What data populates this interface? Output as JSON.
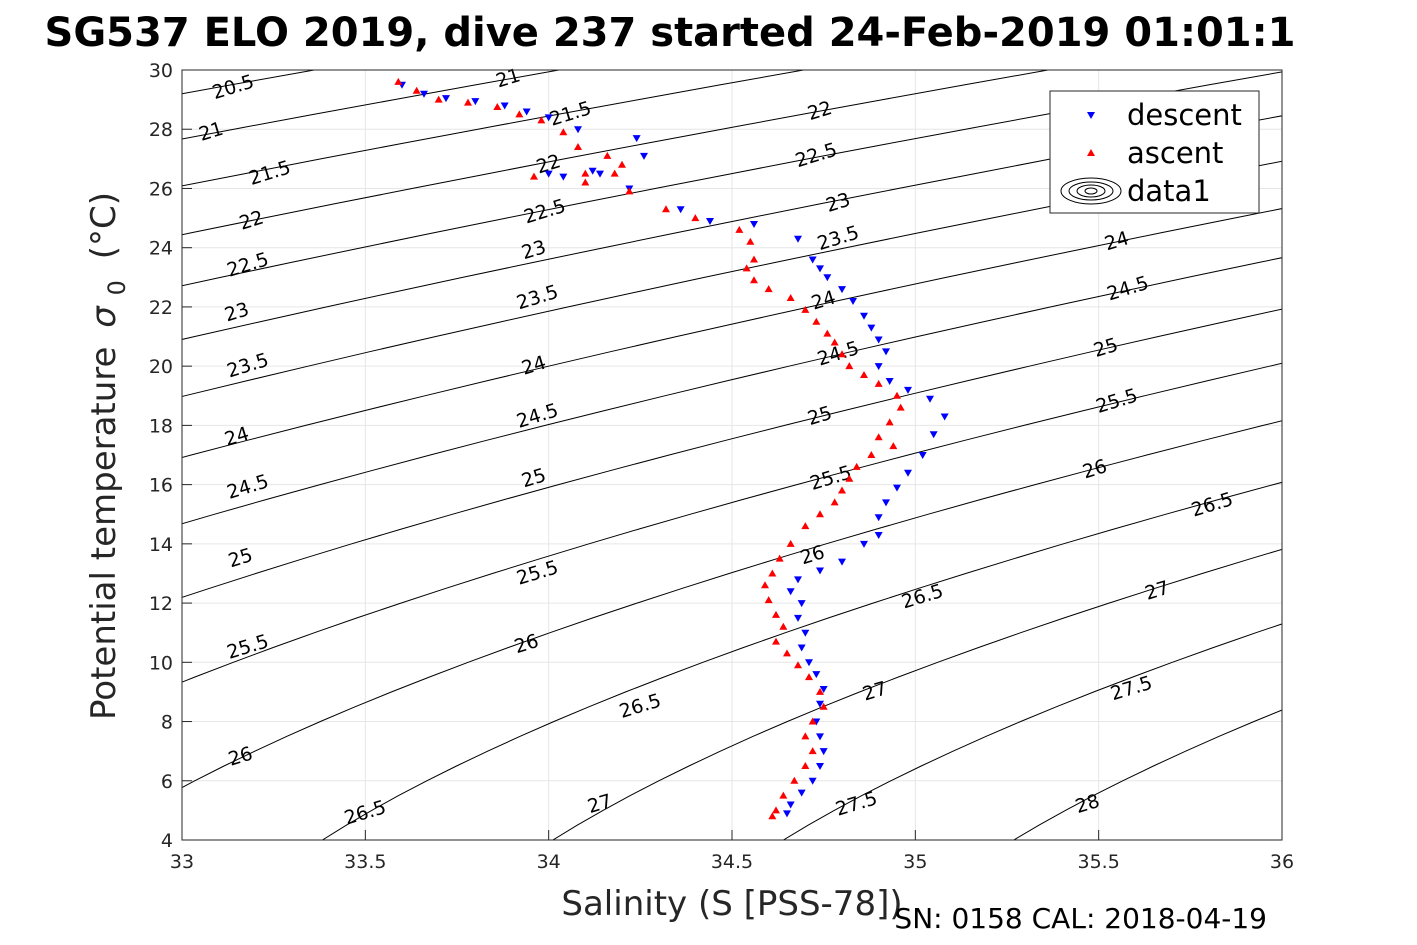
{
  "chart_data": {
    "type": "scatter",
    "title": "SG537 ELO 2019, dive 237 started 24-Feb-2019 01:01:1",
    "xlabel": "Salinity (S [PSS-78])",
    "ylabel": "Potential temperature",
    "ylabel_symbol": "σ",
    "ylabel_subscript": "0",
    "ylabel_unit": "(°C)",
    "xlim": [
      33,
      36
    ],
    "ylim": [
      4,
      30
    ],
    "x_ticks": [
      "33",
      "33.5",
      "34",
      "34.5",
      "35",
      "35.5",
      "36"
    ],
    "x_tick_values": [
      33,
      33.5,
      34,
      34.5,
      35,
      35.5,
      36
    ],
    "y_ticks": [
      "4",
      "6",
      "8",
      "10",
      "12",
      "14",
      "16",
      "18",
      "20",
      "22",
      "24",
      "26",
      "28",
      "30"
    ],
    "y_tick_values": [
      4,
      6,
      8,
      10,
      12,
      14,
      16,
      18,
      20,
      22,
      24,
      26,
      28,
      30
    ],
    "grid": true,
    "legend_position": "top-right",
    "legend": [
      {
        "label": "descent",
        "marker": "triangle-down",
        "color": "#0000ff"
      },
      {
        "label": "ascent",
        "marker": "triangle-up",
        "color": "#ff0000"
      },
      {
        "label": "data1",
        "marker": "contour",
        "color": "#000000"
      }
    ],
    "contours": {
      "levels": [
        20.5,
        21,
        21.5,
        22,
        22.5,
        23,
        23.5,
        24,
        24.5,
        25,
        25.5,
        26,
        26.5,
        27,
        27.5,
        28
      ],
      "labels": [
        {
          "text": "20.5",
          "s": 33.14,
          "t": 29.4
        },
        {
          "text": "21",
          "s": 33.08,
          "t": 27.9
        },
        {
          "text": "21",
          "s": 33.89,
          "t": 29.7
        },
        {
          "text": "21.5",
          "s": 33.24,
          "t": 26.5
        },
        {
          "text": "21.5",
          "s": 34.06,
          "t": 28.5
        },
        {
          "text": "22",
          "s": 33.19,
          "t": 24.9
        },
        {
          "text": "22",
          "s": 34.0,
          "t": 26.8
        },
        {
          "text": "22",
          "s": 34.74,
          "t": 28.6
        },
        {
          "text": "22.5",
          "s": 33.18,
          "t": 23.4
        },
        {
          "text": "22.5",
          "s": 33.99,
          "t": 25.2
        },
        {
          "text": "22.5",
          "s": 34.73,
          "t": 27.1
        },
        {
          "text": "23",
          "s": 33.15,
          "t": 21.8
        },
        {
          "text": "23",
          "s": 33.96,
          "t": 23.9
        },
        {
          "text": "23",
          "s": 34.79,
          "t": 25.5
        },
        {
          "text": "23.5",
          "s": 33.18,
          "t": 20.0
        },
        {
          "text": "23.5",
          "s": 33.97,
          "t": 22.3
        },
        {
          "text": "23.5",
          "s": 34.79,
          "t": 24.3
        },
        {
          "text": "24",
          "s": 33.15,
          "t": 17.6
        },
        {
          "text": "24",
          "s": 33.96,
          "t": 20.0
        },
        {
          "text": "24",
          "s": 34.75,
          "t": 22.2
        },
        {
          "text": "24",
          "s": 35.55,
          "t": 24.2
        },
        {
          "text": "24.5",
          "s": 33.18,
          "t": 15.9
        },
        {
          "text": "24.5",
          "s": 33.97,
          "t": 18.3
        },
        {
          "text": "24.5",
          "s": 34.79,
          "t": 20.4
        },
        {
          "text": "24.5",
          "s": 35.58,
          "t": 22.6
        },
        {
          "text": "25",
          "s": 33.16,
          "t": 13.5
        },
        {
          "text": "25",
          "s": 33.96,
          "t": 16.2
        },
        {
          "text": "25",
          "s": 34.74,
          "t": 18.3
        },
        {
          "text": "25",
          "s": 35.52,
          "t": 20.6
        },
        {
          "text": "25.5",
          "s": 33.18,
          "t": 10.5
        },
        {
          "text": "25.5",
          "s": 33.97,
          "t": 13.0
        },
        {
          "text": "25.5",
          "s": 34.77,
          "t": 16.2
        },
        {
          "text": "25.5",
          "s": 35.55,
          "t": 18.8
        },
        {
          "text": "26",
          "s": 33.16,
          "t": 6.8
        },
        {
          "text": "26",
          "s": 33.94,
          "t": 10.6
        },
        {
          "text": "26",
          "s": 34.72,
          "t": 13.6
        },
        {
          "text": "26",
          "s": 35.49,
          "t": 16.5
        },
        {
          "text": "26.5",
          "s": 33.5,
          "t": 4.9
        },
        {
          "text": "26.5",
          "s": 34.25,
          "t": 8.5
        },
        {
          "text": "26.5",
          "s": 35.02,
          "t": 12.2
        },
        {
          "text": "26.5",
          "s": 35.81,
          "t": 15.3
        },
        {
          "text": "27",
          "s": 34.14,
          "t": 5.2
        },
        {
          "text": "27",
          "s": 34.89,
          "t": 9.0
        },
        {
          "text": "27",
          "s": 35.66,
          "t": 12.4
        },
        {
          "text": "27.5",
          "s": 34.84,
          "t": 5.2
        },
        {
          "text": "27.5",
          "s": 35.59,
          "t": 9.1
        },
        {
          "text": "28",
          "s": 35.47,
          "t": 5.2
        }
      ]
    },
    "series": [
      {
        "name": "descent",
        "color": "#0000ff",
        "marker": "triangle-down",
        "points": [
          [
            33.6,
            29.5
          ],
          [
            33.66,
            29.2
          ],
          [
            33.72,
            29.05
          ],
          [
            33.8,
            28.95
          ],
          [
            33.88,
            28.8
          ],
          [
            33.94,
            28.6
          ],
          [
            34.0,
            28.4
          ],
          [
            34.08,
            28.0
          ],
          [
            34.24,
            27.7
          ],
          [
            34.26,
            27.1
          ],
          [
            34.12,
            26.6
          ],
          [
            34.0,
            26.5
          ],
          [
            34.04,
            26.4
          ],
          [
            34.14,
            26.5
          ],
          [
            34.22,
            26.0
          ],
          [
            34.36,
            25.3
          ],
          [
            34.44,
            24.9
          ],
          [
            34.56,
            24.8
          ],
          [
            34.68,
            24.3
          ],
          [
            34.72,
            23.6
          ],
          [
            34.74,
            23.3
          ],
          [
            34.76,
            23.0
          ],
          [
            34.8,
            22.6
          ],
          [
            34.83,
            22.2
          ],
          [
            34.86,
            21.7
          ],
          [
            34.88,
            21.3
          ],
          [
            34.9,
            20.9
          ],
          [
            34.92,
            20.5
          ],
          [
            34.9,
            20.0
          ],
          [
            34.93,
            19.5
          ],
          [
            34.98,
            19.2
          ],
          [
            35.04,
            18.9
          ],
          [
            35.08,
            18.3
          ],
          [
            35.05,
            17.7
          ],
          [
            35.02,
            17.0
          ],
          [
            34.98,
            16.4
          ],
          [
            34.95,
            15.9
          ],
          [
            34.92,
            15.4
          ],
          [
            34.9,
            14.9
          ],
          [
            34.9,
            14.3
          ],
          [
            34.86,
            14.0
          ],
          [
            34.8,
            13.4
          ],
          [
            34.74,
            13.1
          ],
          [
            34.68,
            12.8
          ],
          [
            34.66,
            12.4
          ],
          [
            34.69,
            12.0
          ],
          [
            34.68,
            11.5
          ],
          [
            34.7,
            11.0
          ],
          [
            34.69,
            10.5
          ],
          [
            34.71,
            10.0
          ],
          [
            34.73,
            9.6
          ],
          [
            34.75,
            9.1
          ],
          [
            34.74,
            8.6
          ],
          [
            34.73,
            8.0
          ],
          [
            34.74,
            7.5
          ],
          [
            34.75,
            7.0
          ],
          [
            34.74,
            6.5
          ],
          [
            34.72,
            6.0
          ],
          [
            34.69,
            5.6
          ],
          [
            34.66,
            5.2
          ],
          [
            34.65,
            4.9
          ]
        ]
      },
      {
        "name": "ascent",
        "color": "#ff0000",
        "marker": "triangle-up",
        "points": [
          [
            33.59,
            29.6
          ],
          [
            33.64,
            29.3
          ],
          [
            33.7,
            29.0
          ],
          [
            33.78,
            28.9
          ],
          [
            33.86,
            28.75
          ],
          [
            33.92,
            28.5
          ],
          [
            33.98,
            28.3
          ],
          [
            34.04,
            27.9
          ],
          [
            34.08,
            27.4
          ],
          [
            34.16,
            27.1
          ],
          [
            34.2,
            26.8
          ],
          [
            34.18,
            26.5
          ],
          [
            34.1,
            26.5
          ],
          [
            33.96,
            26.4
          ],
          [
            34.1,
            26.2
          ],
          [
            34.22,
            25.9
          ],
          [
            34.32,
            25.3
          ],
          [
            34.4,
            25.0
          ],
          [
            34.52,
            24.6
          ],
          [
            34.55,
            24.2
          ],
          [
            34.56,
            23.6
          ],
          [
            34.54,
            23.3
          ],
          [
            34.56,
            22.9
          ],
          [
            34.6,
            22.6
          ],
          [
            34.66,
            22.3
          ],
          [
            34.7,
            21.9
          ],
          [
            34.73,
            21.5
          ],
          [
            34.76,
            21.1
          ],
          [
            34.78,
            20.8
          ],
          [
            34.8,
            20.4
          ],
          [
            34.82,
            20.0
          ],
          [
            34.86,
            19.7
          ],
          [
            34.9,
            19.4
          ],
          [
            34.95,
            19.0
          ],
          [
            34.96,
            18.6
          ],
          [
            34.93,
            18.1
          ],
          [
            34.9,
            17.6
          ],
          [
            34.94,
            17.3
          ],
          [
            34.88,
            17.0
          ],
          [
            34.84,
            16.6
          ],
          [
            34.82,
            16.2
          ],
          [
            34.8,
            15.8
          ],
          [
            34.78,
            15.4
          ],
          [
            34.74,
            15.0
          ],
          [
            34.7,
            14.6
          ],
          [
            34.66,
            14.0
          ],
          [
            34.63,
            13.5
          ],
          [
            34.61,
            13.0
          ],
          [
            34.59,
            12.6
          ],
          [
            34.6,
            12.1
          ],
          [
            34.62,
            11.6
          ],
          [
            34.64,
            11.2
          ],
          [
            34.62,
            10.7
          ],
          [
            34.65,
            10.3
          ],
          [
            34.68,
            9.9
          ],
          [
            34.71,
            9.5
          ],
          [
            34.74,
            9.0
          ],
          [
            34.75,
            8.5
          ],
          [
            34.72,
            8.0
          ],
          [
            34.7,
            7.5
          ],
          [
            34.72,
            7.0
          ],
          [
            34.7,
            6.5
          ],
          [
            34.67,
            6.0
          ],
          [
            34.64,
            5.5
          ],
          [
            34.62,
            5.0
          ],
          [
            34.61,
            4.8
          ]
        ]
      }
    ]
  },
  "footer": {
    "serial": "SN: 0158  CAL: 2018-04-19"
  }
}
